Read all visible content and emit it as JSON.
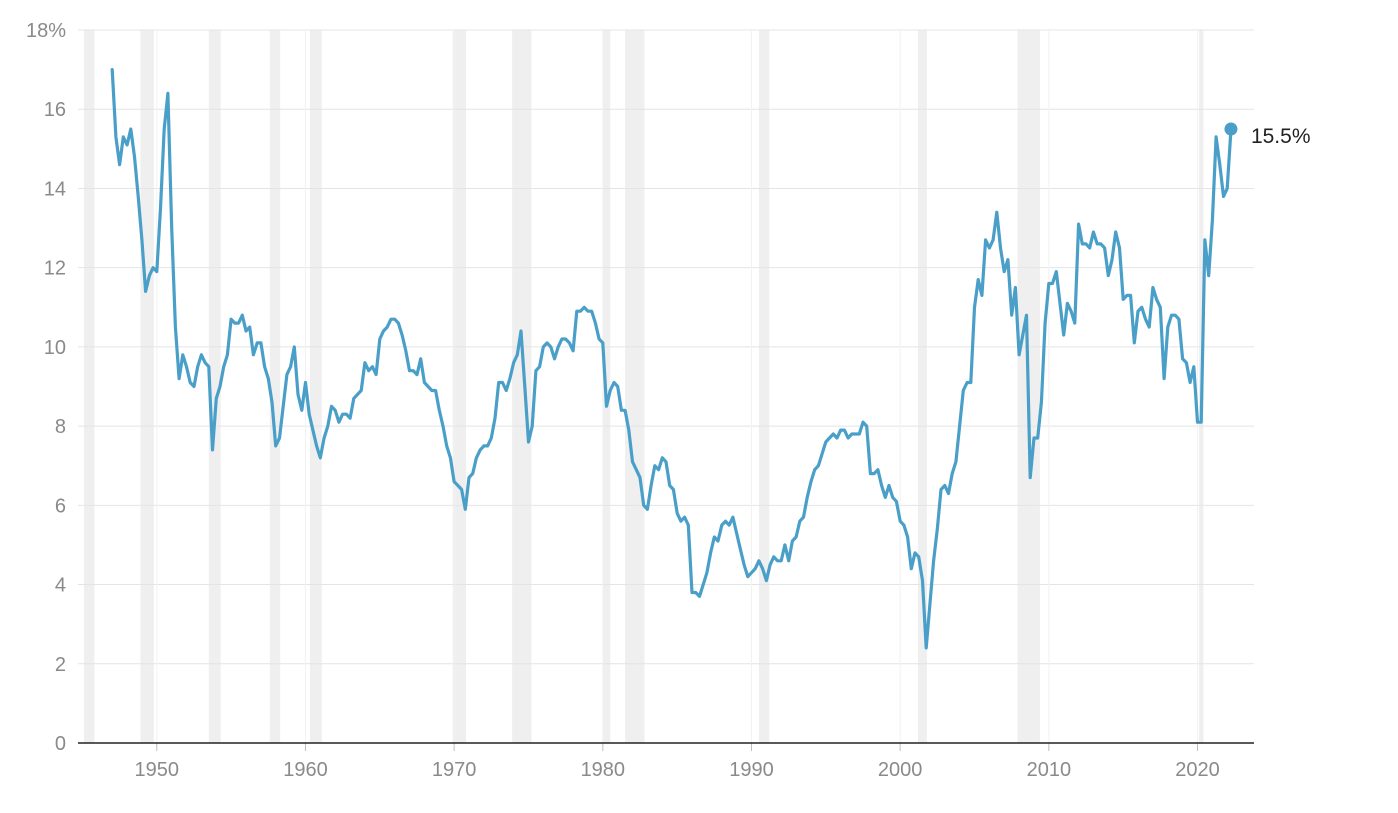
{
  "chart_data": {
    "type": "line",
    "title": "",
    "xlabel": "",
    "ylabel": "",
    "x_ticks": [
      "1950",
      "1960",
      "1970",
      "1980",
      "1990",
      "2000",
      "2010",
      "2020"
    ],
    "y_ticks": [
      "0",
      "2",
      "4",
      "6",
      "8",
      "10",
      "12",
      "14",
      "16",
      "18%"
    ],
    "xlim": [
      1944.7,
      1947.0
    ],
    "ylim": [
      0,
      18
    ],
    "grid": "horizontal",
    "legend": "none",
    "colors": {
      "line": "#4a9fc9",
      "recession_band": "#efefef",
      "grid": "#e4e4e4",
      "axis": "#222222"
    },
    "end_label": "15.5%",
    "recessions": [
      [
        1945.1,
        1945.8
      ],
      [
        1948.9,
        1949.8
      ],
      [
        1953.5,
        1954.3
      ],
      [
        1957.6,
        1958.3
      ],
      [
        1960.3,
        1961.1
      ],
      [
        1969.9,
        1970.8
      ],
      [
        1973.9,
        1975.2
      ],
      [
        1980.0,
        1980.5
      ],
      [
        1981.5,
        1982.8
      ],
      [
        1990.5,
        1991.2
      ],
      [
        2001.2,
        2001.8
      ],
      [
        2007.9,
        2009.4
      ],
      [
        2020.1,
        2020.4
      ]
    ],
    "series": [
      {
        "x": [
          1947.0,
          1947.25,
          1947.5,
          1947.75,
          1948.0,
          1948.25,
          1948.5,
          1948.75,
          1949.0,
          1949.25,
          1949.5,
          1949.75,
          1950.0,
          1950.25,
          1950.5,
          1950.75,
          1951.0,
          1951.25,
          1951.5,
          1951.75,
          1952.0,
          1952.25,
          1952.5,
          1952.75,
          1953.0,
          1953.25,
          1953.5,
          1953.75,
          1954.0,
          1954.25,
          1954.5,
          1954.75,
          1955.0,
          1955.25,
          1955.5,
          1955.75,
          1956.0,
          1956.25,
          1956.5,
          1956.75,
          1957.0,
          1957.25,
          1957.5,
          1957.75,
          1958.0,
          1958.25,
          1958.5,
          1958.75,
          1959.0,
          1959.25,
          1959.5,
          1959.75,
          1960.0,
          1960.25,
          1960.5,
          1960.75,
          1961.0,
          1961.25,
          1961.5,
          1961.75,
          1962.0,
          1962.25,
          1962.5,
          1962.75,
          1963.0,
          1963.25,
          1963.5,
          1963.75,
          1964.0,
          1964.25,
          1964.5,
          1964.75,
          1965.0,
          1965.25,
          1965.5,
          1965.75,
          1966.0,
          1966.25,
          1966.5,
          1966.75,
          1967.0,
          1967.25,
          1967.5,
          1967.75,
          1968.0,
          1968.25,
          1968.5,
          1968.75,
          1969.0,
          1969.25,
          1969.5,
          1969.75,
          1970.0,
          1970.25,
          1970.5,
          1970.75,
          1971.0,
          1971.25,
          1971.5,
          1971.75,
          1972.0,
          1972.25,
          1972.5,
          1972.75,
          1973.0,
          1973.25,
          1973.5,
          1973.75,
          1974.0,
          1974.25,
          1974.5,
          1974.75,
          1975.0,
          1975.25,
          1975.5,
          1975.75,
          1976.0,
          1976.25,
          1976.5,
          1976.75,
          1977.0,
          1977.25,
          1977.5,
          1977.75,
          1978.0,
          1978.25,
          1978.5,
          1978.75,
          1979.0,
          1979.25,
          1979.5,
          1979.75,
          1980.0,
          1980.25,
          1980.5,
          1980.75,
          1981.0,
          1981.25,
          1981.5,
          1981.75,
          1982.0,
          1982.25,
          1982.5,
          1982.75,
          1983.0,
          1983.25,
          1983.5,
          1983.75,
          1984.0,
          1984.25,
          1984.5,
          1984.75,
          1985.0,
          1985.25,
          1985.5,
          1985.75,
          1986.0,
          1986.25,
          1986.5,
          1986.75,
          1987.0,
          1987.25,
          1987.5,
          1987.75,
          1988.0,
          1988.25,
          1988.5,
          1988.75,
          1989.0,
          1989.25,
          1989.5,
          1989.75,
          1990.0,
          1990.25,
          1990.5,
          1990.75,
          1991.0,
          1991.25,
          1991.5,
          1991.75,
          1992.0,
          1992.25,
          1992.5,
          1992.75,
          1993.0,
          1993.25,
          1993.5,
          1993.75,
          1994.0,
          1994.25,
          1994.5,
          1994.75,
          1995.0,
          1995.25,
          1995.5,
          1995.75,
          1996.0,
          1996.25,
          1996.5,
          1996.75,
          1997.0,
          1997.25,
          1997.5,
          1997.75,
          1998.0,
          1998.25,
          1998.5,
          1998.75,
          1999.0,
          1999.25,
          1999.5,
          1999.75,
          2000.0,
          2000.25,
          2000.5,
          2000.75,
          2001.0,
          2001.25,
          2001.5,
          2001.75,
          2002.0,
          2002.25,
          2002.5,
          2002.75,
          2003.0,
          2003.25,
          2003.5,
          2003.75,
          2004.0,
          2004.25,
          2004.5,
          2004.75,
          2005.0,
          2005.25,
          2005.5,
          2005.75,
          2006.0,
          2006.25,
          2006.5,
          2006.75,
          2007.0,
          2007.25,
          2007.5,
          2007.75,
          2008.0,
          2008.25,
          2008.5,
          2008.75,
          2009.0,
          2009.25,
          2009.5,
          2009.75,
          2010.0,
          2010.25,
          2010.5,
          2010.75,
          2011.0,
          2011.25,
          2011.5,
          2011.75,
          2012.0,
          2012.25,
          2012.5,
          2012.75,
          2013.0,
          2013.25,
          2013.5,
          2013.75,
          2014.0,
          2014.25,
          2014.5,
          2014.75,
          2015.0,
          2015.25,
          2015.5,
          2015.75,
          2016.0,
          2016.25,
          2016.5,
          2016.75,
          2017.0,
          2017.25,
          2017.5,
          2017.75,
          2018.0,
          2018.25,
          2018.5,
          2018.75,
          2019.0,
          2019.25,
          2019.5,
          2019.75,
          2020.0,
          2020.25,
          2020.5,
          2020.75,
          2021.0,
          2021.25,
          2021.5,
          2021.75,
          2022.0,
          2022.25
        ],
        "values": [
          17.0,
          15.3,
          14.6,
          15.3,
          15.1,
          15.5,
          14.8,
          13.8,
          12.7,
          11.4,
          11.8,
          12.0,
          11.9,
          13.5,
          15.5,
          16.4,
          13.0,
          10.5,
          9.2,
          9.8,
          9.5,
          9.1,
          9.0,
          9.5,
          9.8,
          9.6,
          9.5,
          7.4,
          8.7,
          9.0,
          9.5,
          9.8,
          10.7,
          10.6,
          10.6,
          10.8,
          10.4,
          10.5,
          9.8,
          10.1,
          10.1,
          9.5,
          9.2,
          8.6,
          7.5,
          7.7,
          8.5,
          9.3,
          9.5,
          10.0,
          8.8,
          8.4,
          9.1,
          8.3,
          7.9,
          7.5,
          7.2,
          7.7,
          8.0,
          8.5,
          8.4,
          8.1,
          8.3,
          8.3,
          8.2,
          8.7,
          8.8,
          8.9,
          9.6,
          9.4,
          9.5,
          9.3,
          10.2,
          10.4,
          10.5,
          10.7,
          10.7,
          10.6,
          10.3,
          9.9,
          9.4,
          9.4,
          9.3,
          9.7,
          9.1,
          9.0,
          8.9,
          8.9,
          8.4,
          8.0,
          7.5,
          7.2,
          6.6,
          6.5,
          6.4,
          5.9,
          6.7,
          6.8,
          7.2,
          7.4,
          7.5,
          7.5,
          7.7,
          8.2,
          9.1,
          9.1,
          8.9,
          9.2,
          9.6,
          9.8,
          10.4,
          9.0,
          7.6,
          8.0,
          9.4,
          9.5,
          10.0,
          10.1,
          10.0,
          9.7,
          10.0,
          10.2,
          10.2,
          10.1,
          9.9,
          10.9,
          10.9,
          11.0,
          10.9,
          10.9,
          10.6,
          10.2,
          10.1,
          8.5,
          8.9,
          9.1,
          9.0,
          8.4,
          8.4,
          7.9,
          7.1,
          6.9,
          6.7,
          6.0,
          5.9,
          6.5,
          7.0,
          6.9,
          7.2,
          7.1,
          6.5,
          6.4,
          5.8,
          5.6,
          5.7,
          5.5,
          3.8,
          3.8,
          3.7,
          4.0,
          4.3,
          4.8,
          5.2,
          5.1,
          5.5,
          5.6,
          5.5,
          5.7,
          5.3,
          4.9,
          4.5,
          4.2,
          4.3,
          4.4,
          4.6,
          4.4,
          4.1,
          4.5,
          4.7,
          4.6,
          4.6,
          5.0,
          4.6,
          5.1,
          5.2,
          5.6,
          5.7,
          6.2,
          6.6,
          6.9,
          7.0,
          7.3,
          7.6,
          7.7,
          7.8,
          7.7,
          7.9,
          7.9,
          7.7,
          7.8,
          7.8,
          7.8,
          8.1,
          8.0,
          6.8,
          6.8,
          6.9,
          6.5,
          6.2,
          6.5,
          6.2,
          6.1,
          5.6,
          5.5,
          5.2,
          4.4,
          4.8,
          4.7,
          4.1,
          2.4,
          3.5,
          4.6,
          5.4,
          6.4,
          6.5,
          6.3,
          6.8,
          7.1,
          8.0,
          8.9,
          9.1,
          9.1,
          11.0,
          11.7,
          11.3,
          12.7,
          12.5,
          12.7,
          13.4,
          12.5,
          11.9,
          12.2,
          10.8,
          11.5,
          9.8,
          10.3,
          10.8,
          6.7,
          7.7,
          7.7,
          8.6,
          10.6,
          11.6,
          11.6,
          11.9,
          11.1,
          10.3,
          11.1,
          10.9,
          10.6,
          13.1,
          12.6,
          12.6,
          12.5,
          12.9,
          12.6,
          12.6,
          12.5,
          11.8,
          12.2,
          12.9,
          12.5,
          11.2,
          11.3,
          11.3,
          10.1,
          10.9,
          11.0,
          10.7,
          10.5,
          11.5,
          11.2,
          11.0,
          9.2,
          10.5,
          10.8,
          10.8,
          10.7,
          9.7,
          9.6,
          9.1,
          9.5,
          8.1,
          8.1,
          12.7,
          11.8,
          13.2,
          15.3,
          14.6,
          13.8,
          14.0,
          15.5
        ]
      }
    ]
  }
}
